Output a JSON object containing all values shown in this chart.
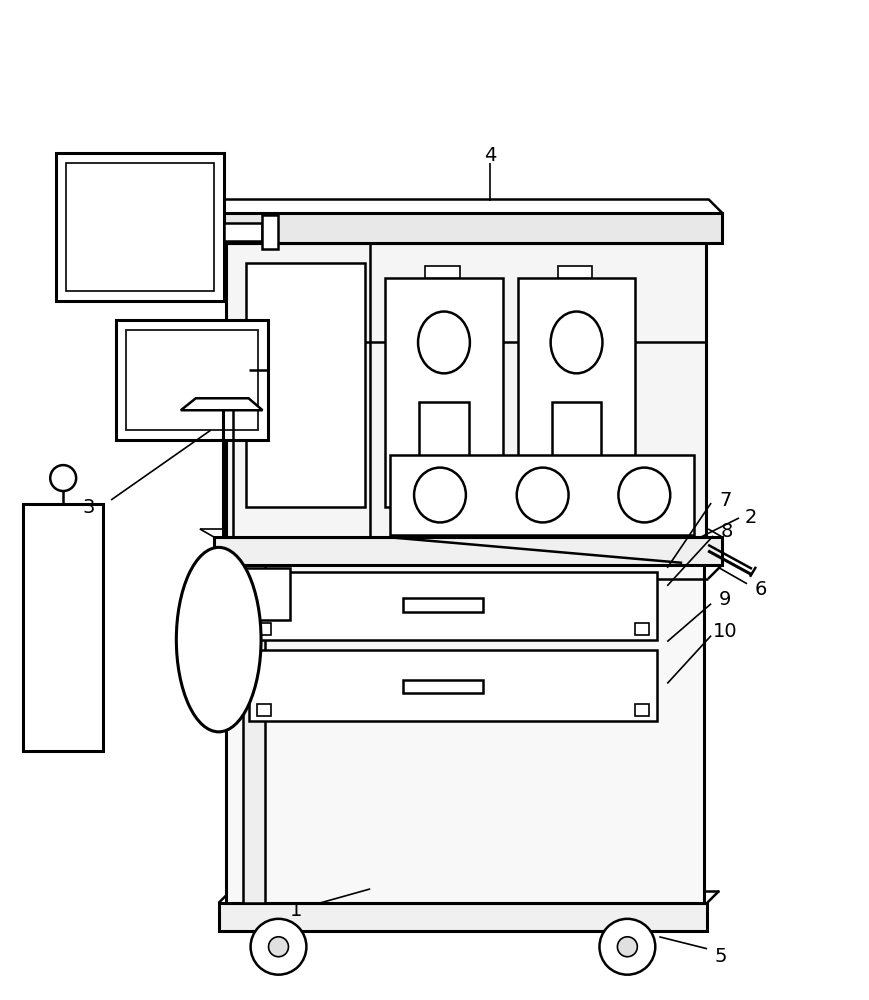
{
  "bg_color": "#ffffff",
  "lw_thin": 1.2,
  "lw_med": 1.8,
  "lw_thick": 2.2,
  "label_fs": 14
}
